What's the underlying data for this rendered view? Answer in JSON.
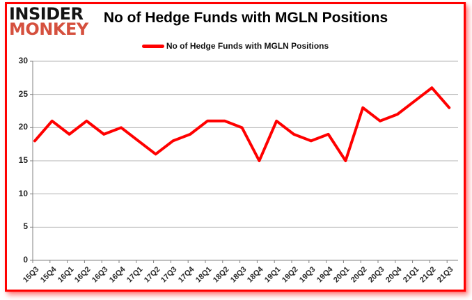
{
  "logo": {
    "line1": "INSIDER",
    "line2": "MONKEY"
  },
  "header": {
    "title": "No of Hedge Funds with MGLN Positions"
  },
  "legend": {
    "label": "No of Hedge Funds with MGLN Positions"
  },
  "colors": {
    "border": "#ff0000",
    "logo_black": "#141414",
    "logo_red": "#d5503e",
    "series_red": "#ff0000",
    "gridline": "#b3b3b3",
    "axis": "#808080",
    "tick_label": "#262626"
  },
  "chart_data": {
    "type": "line",
    "title": "No of Hedge Funds with MGLN Positions",
    "categories": [
      "15Q3",
      "15Q4",
      "16Q1",
      "16Q2",
      "16Q3",
      "16Q4",
      "17Q1",
      "17Q2",
      "17Q3",
      "17Q4",
      "18Q1",
      "18Q2",
      "18Q3",
      "18Q4",
      "19Q1",
      "19Q2",
      "19Q3",
      "19Q4",
      "20Q1",
      "20Q2",
      "20Q3",
      "20Q4",
      "21Q1",
      "21Q2",
      "21Q3"
    ],
    "series": [
      {
        "name": "No of Hedge Funds with MGLN Positions",
        "color": "#ff0000",
        "values": [
          18,
          21,
          19,
          21,
          19,
          20,
          18,
          16,
          18,
          19,
          21,
          21,
          20,
          15,
          21,
          19,
          18,
          19,
          15,
          23,
          21,
          22,
          24,
          26,
          23
        ]
      }
    ],
    "xlabel": "",
    "ylabel": "",
    "ylim": [
      0,
      30
    ],
    "yticks": [
      0,
      5,
      10,
      15,
      20,
      25,
      30
    ],
    "grid": true,
    "legend_position": "top-center"
  }
}
